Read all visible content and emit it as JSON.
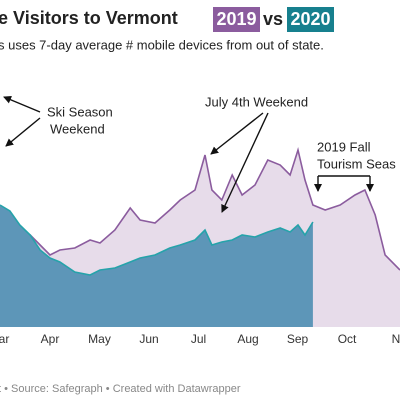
{
  "chart_data": {
    "type": "area",
    "title": "e Visitors to Vermont",
    "title_badges": [
      {
        "text": "2019",
        "color": "#8b5c9e"
      },
      {
        "text": "2020",
        "color": "#17808e"
      }
    ],
    "title_joiner": "vs",
    "subtitle": "s uses 7-day average # mobile devices from out of state.",
    "footer": "t • Source: Safegraph • Created with Datawrapper",
    "xlim": [
      2.99,
      11.07
    ],
    "xticks": [
      {
        "value": 3,
        "label": "ar"
      },
      {
        "value": 4,
        "label": "Apr"
      },
      {
        "value": 5,
        "label": "May"
      },
      {
        "value": 6,
        "label": "Jun"
      },
      {
        "value": 7,
        "label": "Jul"
      },
      {
        "value": 8,
        "label": "Aug"
      },
      {
        "value": 9,
        "label": "Sep"
      },
      {
        "value": 10,
        "label": "Oct"
      },
      {
        "value": 11,
        "label": "N"
      }
    ],
    "ylim": [
      0,
      100
    ],
    "x": [
      2.99,
      3.19,
      3.39,
      3.6,
      3.8,
      4.0,
      4.2,
      4.5,
      4.81,
      5.01,
      5.31,
      5.62,
      5.82,
      6.12,
      6.42,
      6.63,
      6.93,
      7.13,
      7.27,
      7.47,
      7.68,
      7.88,
      8.14,
      8.4,
      8.65,
      8.85,
      9.01,
      9.15,
      9.31,
      9.56,
      9.86,
      10.16,
      10.36,
      10.57,
      10.77,
      11.07
    ],
    "series": [
      {
        "name": "2019",
        "color": "#8b5c9e",
        "fill": "#e7dcea",
        "values": [
          51,
          49.5,
          47.5,
          46,
          41,
          36,
          38.5,
          39.5,
          43.5,
          42,
          48.5,
          59.5,
          53.5,
          52,
          58.5,
          63.5,
          68.5,
          86,
          68.5,
          63.5,
          76,
          66,
          71,
          83.5,
          81,
          76,
          88.5,
          73.5,
          61,
          58.5,
          61,
          66,
          68.5,
          56,
          36,
          28.5
        ]
      },
      {
        "name": "2020",
        "color": "#26a3aa",
        "fill": "#5d96b8",
        "values": [
          61,
          58,
          51,
          46,
          38.5,
          34.5,
          32.5,
          27.5,
          26,
          28.5,
          29.5,
          32.5,
          34.5,
          36,
          39.5,
          41,
          43.5,
          48.5,
          41,
          42.5,
          43.5,
          46,
          45,
          47.5,
          49.5,
          47.5,
          51,
          46,
          52.5,
          null,
          null,
          null,
          null,
          null,
          null,
          null
        ]
      }
    ],
    "annotations": [
      {
        "lines": [
          "Ski Season",
          "Weekend"
        ]
      },
      {
        "lines": [
          "July 4th Weekend"
        ]
      },
      {
        "lines": [
          "2019 Fall",
          "Tourism Seas"
        ]
      }
    ]
  }
}
